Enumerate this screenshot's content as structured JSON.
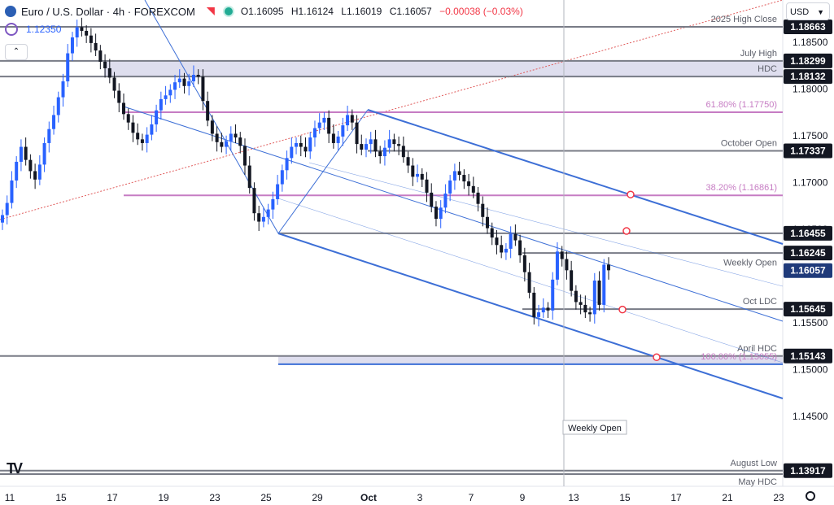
{
  "header": {
    "symbol": "Euro / U.S. Dollar · 4h · FOREXCOM",
    "open": "O1.16095",
    "high": "H1.16124",
    "low": "L1.16019",
    "close": "C1.16057",
    "change": "−0.00038 (−0.03%)",
    "indicator_value": "1.12350",
    "collapse_icon": "chevron-up-icon",
    "currency": "USD"
  },
  "colors": {
    "bull": "#2962ff",
    "bear": "#131722",
    "level": "#787b86",
    "fib": "#c67cc3",
    "channel": "#3d6fd6",
    "trendline": "#e05a5a",
    "zone": "#d6d6ea",
    "price_tag": "#131722",
    "current_tag": "#1f3a7a"
  },
  "chart_data": {
    "type": "candlestick",
    "instrument": "Euro / U.S. Dollar",
    "timeframe": "4h",
    "x_ticks": [
      "11",
      "15",
      "17",
      "19",
      "23",
      "25",
      "29",
      "Oct",
      "3",
      "7",
      "9",
      "13",
      "15",
      "17",
      "21",
      "23"
    ],
    "y_ticks": [
      "1.18500",
      "1.18000",
      "1.17500",
      "1.17000",
      "1.16500",
      "1.15500",
      "1.15000",
      "1.14500"
    ],
    "ylim": [
      1.1375,
      1.1895
    ],
    "price_labels": [
      {
        "name": "2025 High Close",
        "value": 1.18663
      },
      {
        "name": "July High",
        "value": 1.18299
      },
      {
        "name": "HDC",
        "value": 1.18132
      },
      {
        "name": "61.80% (1.17750)",
        "value": 1.1775
      },
      {
        "name": "October Open",
        "value": 1.17337
      },
      {
        "name": "38.20% (1.16861)",
        "value": 1.16861
      },
      {
        "name": "",
        "value": 1.16455
      },
      {
        "name": "",
        "value": 1.16245
      },
      {
        "name": "Weekly Open",
        "value": 1.16057
      },
      {
        "name": "Oct LDC",
        "value": 1.15645
      },
      {
        "name": "April HDC",
        "value": 1.15143
      },
      {
        "name": "100.00% (1.15055)",
        "value": 1.15055
      },
      {
        "name": "August Low",
        "value": 1.13917
      },
      {
        "name": "May HDC",
        "value": null
      }
    ],
    "tag_texts": [
      "1.18663",
      "1.18299",
      "1.18132",
      "1.17337",
      "1.16455",
      "1.16245",
      "1.16057",
      "1.15645",
      "1.15143",
      "1.13917"
    ],
    "vertical_marker": "Weekly Open",
    "closes": [
      1.1665,
      1.1678,
      1.1702,
      1.1722,
      1.1738,
      1.1724,
      1.1712,
      1.1703,
      1.1719,
      1.1742,
      1.1757,
      1.1772,
      1.1791,
      1.1808,
      1.1838,
      1.1855,
      1.1866,
      1.1862,
      1.1857,
      1.1849,
      1.1841,
      1.1829,
      1.1822,
      1.1812,
      1.1798,
      1.1785,
      1.1773,
      1.1764,
      1.1753,
      1.1746,
      1.1742,
      1.1751,
      1.1762,
      1.1777,
      1.1789,
      1.1793,
      1.1799,
      1.1807,
      1.1811,
      1.1803,
      1.1808,
      1.1815,
      1.1813,
      1.1787,
      1.1766,
      1.1752,
      1.1743,
      1.1738,
      1.1744,
      1.1752,
      1.1748,
      1.1739,
      1.1718,
      1.1694,
      1.1667,
      1.1658,
      1.1663,
      1.1671,
      1.1682,
      1.1698,
      1.1713,
      1.1726,
      1.1738,
      1.1742,
      1.1738,
      1.1733,
      1.1748,
      1.1758,
      1.1764,
      1.1769,
      1.1752,
      1.1742,
      1.1749,
      1.1761,
      1.1772,
      1.1764,
      1.1741,
      1.1735,
      1.1741,
      1.1746,
      1.1733,
      1.1728,
      1.1737,
      1.1746,
      1.1741,
      1.1739,
      1.1727,
      1.1718,
      1.1706,
      1.1709,
      1.1703,
      1.1689,
      1.1674,
      1.1661,
      1.1673,
      1.1688,
      1.1702,
      1.1712,
      1.1708,
      1.1701,
      1.1696,
      1.1689,
      1.1677,
      1.1663,
      1.1651,
      1.1641,
      1.1633,
      1.1625,
      1.1629,
      1.1645,
      1.1638,
      1.1622,
      1.1604,
      1.1582,
      1.1556,
      1.1561,
      1.1566,
      1.1563,
      1.1596,
      1.1626,
      1.1618,
      1.1606,
      1.1584,
      1.1572,
      1.1569,
      1.1561,
      1.1559,
      1.1595,
      1.1569,
      1.1612,
      1.1606
    ],
    "annotation_points": [
      {
        "price": 1.1687
      },
      {
        "price": 1.1648
      },
      {
        "price": 1.1564
      },
      {
        "price": 1.1513
      }
    ]
  }
}
